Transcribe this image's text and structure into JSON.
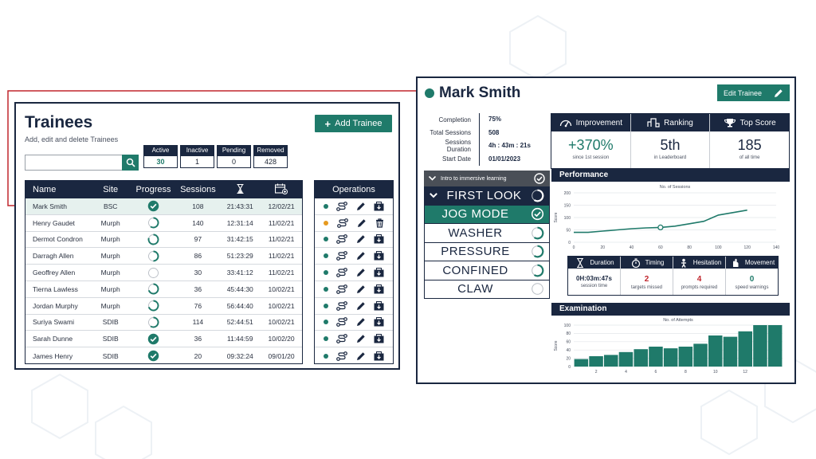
{
  "trainees": {
    "title": "Trainees",
    "subtitle": "Add, edit and delete Trainees",
    "add_button": "Add Trainee",
    "search": {
      "value": "",
      "placeholder": ""
    },
    "stats": [
      {
        "label": "Active",
        "value": "30"
      },
      {
        "label": "Inactive",
        "value": "1"
      },
      {
        "label": "Pending",
        "value": "0"
      },
      {
        "label": "Removed",
        "value": "428"
      }
    ],
    "columns": [
      "Name",
      "Site",
      "Progress",
      "Sessions"
    ],
    "ops_header": "Operations",
    "icons": {
      "time_column": "hourglass-icon",
      "date_column": "calendar-add-icon",
      "progress": "progress-ring-icon",
      "complete": "check-circle-icon",
      "ops": [
        "status-dot-icon",
        "route-icon",
        "pencil-icon",
        "export-icon"
      ]
    },
    "rows": [
      {
        "name": "Mark Smith",
        "site": "BSC",
        "progress": 1.0,
        "sessions": "108",
        "time": "21:43:31",
        "date": "12/02/21",
        "status": "active",
        "op_last": "export",
        "selected": true
      },
      {
        "name": "Henry Gaudet",
        "site": "Murph",
        "progress": 0.6,
        "sessions": "140",
        "time": "12:31:14",
        "date": "11/02/21",
        "status": "pending",
        "op_last": "trash"
      },
      {
        "name": "Dermot Condron",
        "site": "Murph",
        "progress": 0.8,
        "sessions": "97",
        "time": "31:42:15",
        "date": "11/02/21",
        "status": "active",
        "op_last": "export"
      },
      {
        "name": "Darragh  Allen",
        "site": "Murph",
        "progress": 0.5,
        "sessions": "86",
        "time": "51:23:29",
        "date": "11/02/21",
        "status": "active",
        "op_last": "export"
      },
      {
        "name": "Geoffrey Allen",
        "site": "Murph",
        "progress": 0.0,
        "sessions": "30",
        "time": "33:41:12",
        "date": "11/02/21",
        "status": "active",
        "op_last": "export"
      },
      {
        "name": "Tierna Lawless",
        "site": "Murph",
        "progress": 0.7,
        "sessions": "36",
        "time": "45:44:30",
        "date": "10/02/21",
        "status": "active",
        "op_last": "export"
      },
      {
        "name": "Jordan Murphy",
        "site": "Murph",
        "progress": 0.7,
        "sessions": "76",
        "time": "56:44:40",
        "date": "10/02/21",
        "status": "active",
        "op_last": "export"
      },
      {
        "name": "Suriya Swami",
        "site": "SDIB",
        "progress": 0.6,
        "sessions": "114",
        "time": "52:44:51",
        "date": "10/02/21",
        "status": "active",
        "op_last": "export"
      },
      {
        "name": "Sarah Dunne",
        "site": "SDIB",
        "progress": 1.0,
        "sessions": "36",
        "time": "11:44:59",
        "date": "10/02/20",
        "status": "active",
        "op_last": "export"
      },
      {
        "name": "James  Henry",
        "site": "SDIB",
        "progress": 1.0,
        "sessions": "20",
        "time": "09:32:24",
        "date": "09/01/20",
        "status": "active",
        "op_last": "export"
      }
    ]
  },
  "profile": {
    "name": "Mark Smith",
    "edit_button": "Edit Trainee",
    "info": [
      {
        "label": "Completion",
        "value": "75%"
      },
      {
        "label": "Total Sessions",
        "value": "508"
      },
      {
        "label": "Sessions Duration",
        "value": "4h : 43m : 21s"
      },
      {
        "label": "Start Date",
        "value": "01/01/2023"
      }
    ],
    "metrics": [
      {
        "title": "Improvement",
        "value": "+370%",
        "sub": "since 1st session",
        "icon": "gauge-icon"
      },
      {
        "title": "Ranking",
        "value": "5th",
        "sub": "in Leaderboard",
        "icon": "bar-ranking-icon"
      },
      {
        "title": "Top Score",
        "value": "185",
        "sub": "of all time",
        "icon": "trophy-icon"
      }
    ],
    "steps_header": "Intro to immersive learning",
    "steps": [
      {
        "label": "FIRST LOOK",
        "state": "partial"
      },
      {
        "label": "JOG MODE",
        "state": "done"
      },
      {
        "label": "WASHER",
        "state": "partial"
      },
      {
        "label": "PRESSURE",
        "state": "partial"
      },
      {
        "label": "CONFINED",
        "state": "partial"
      },
      {
        "label": "CLAW",
        "state": "empty"
      }
    ],
    "performance_title": "Performance",
    "sub_metrics": [
      {
        "title": "Duration",
        "value": "0H:03m:47s",
        "sub": "session time",
        "color": "#1a2740",
        "icon": "hourglass-icon"
      },
      {
        "title": "Timing",
        "value": "2",
        "sub": "targets missed",
        "color": "#c0262d",
        "icon": "stopwatch-icon"
      },
      {
        "title": "Hesitation",
        "value": "4",
        "sub": "prompts required",
        "color": "#c0262d",
        "icon": "hesitation-icon"
      },
      {
        "title": "Movement",
        "value": "0",
        "sub": "speed warnings",
        "color": "#1f7a6a",
        "icon": "movement-icon"
      }
    ],
    "examination_title": "Examination"
  },
  "chart_data": [
    {
      "type": "line",
      "title": "No. of Sessions",
      "xlabel": "",
      "ylabel": "Score",
      "x": [
        0,
        10,
        20,
        30,
        40,
        50,
        60,
        70,
        80,
        90,
        100,
        110,
        120
      ],
      "values": [
        40,
        40,
        45,
        50,
        55,
        58,
        60,
        65,
        75,
        85,
        110,
        120,
        130
      ],
      "xlim": [
        0,
        140
      ],
      "ylim": [
        0,
        200
      ],
      "xticks": [
        0,
        20,
        40,
        60,
        80,
        100,
        120,
        140
      ],
      "yticks": [
        0,
        50,
        100,
        150,
        200
      ],
      "highlight_x": 60,
      "grid": true
    },
    {
      "type": "bar",
      "title": "No. of Attempts",
      "xlabel": "",
      "ylabel": "Score",
      "categories": [
        1,
        2,
        3,
        4,
        5,
        6,
        7,
        8,
        9,
        10,
        11,
        12,
        13,
        14
      ],
      "values": [
        18,
        25,
        28,
        35,
        42,
        48,
        44,
        48,
        55,
        75,
        72,
        85,
        100,
        100
      ],
      "ylim": [
        0,
        100
      ],
      "xticks": [
        2,
        4,
        6,
        8,
        10,
        12
      ],
      "yticks": [
        0,
        20,
        40,
        60,
        80,
        100
      ],
      "grid": true
    }
  ],
  "colors": {
    "navy": "#1a2740",
    "teal": "#1f7a6a",
    "red": "#c0262d",
    "orange": "#e69a1f",
    "connector": "#c0262d"
  }
}
